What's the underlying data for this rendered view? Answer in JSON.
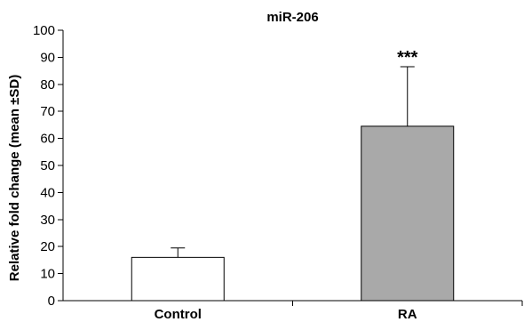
{
  "chart_data": {
    "type": "bar",
    "title": "miR-206",
    "xlabel": "",
    "ylabel": "Relative fold change (mean ±SD)",
    "categories": [
      "Control",
      "RA"
    ],
    "values": [
      16,
      64.5
    ],
    "errors": [
      3.5,
      22
    ],
    "significance": [
      "",
      "***"
    ],
    "ylim": [
      0,
      100
    ],
    "yticks": [
      0,
      10,
      20,
      30,
      40,
      50,
      60,
      70,
      80,
      90,
      100
    ],
    "bar_colors": [
      "#ffffff",
      "#a9a9a9"
    ],
    "bar_edge_color": "#000000",
    "grid": false,
    "legend": "none"
  }
}
